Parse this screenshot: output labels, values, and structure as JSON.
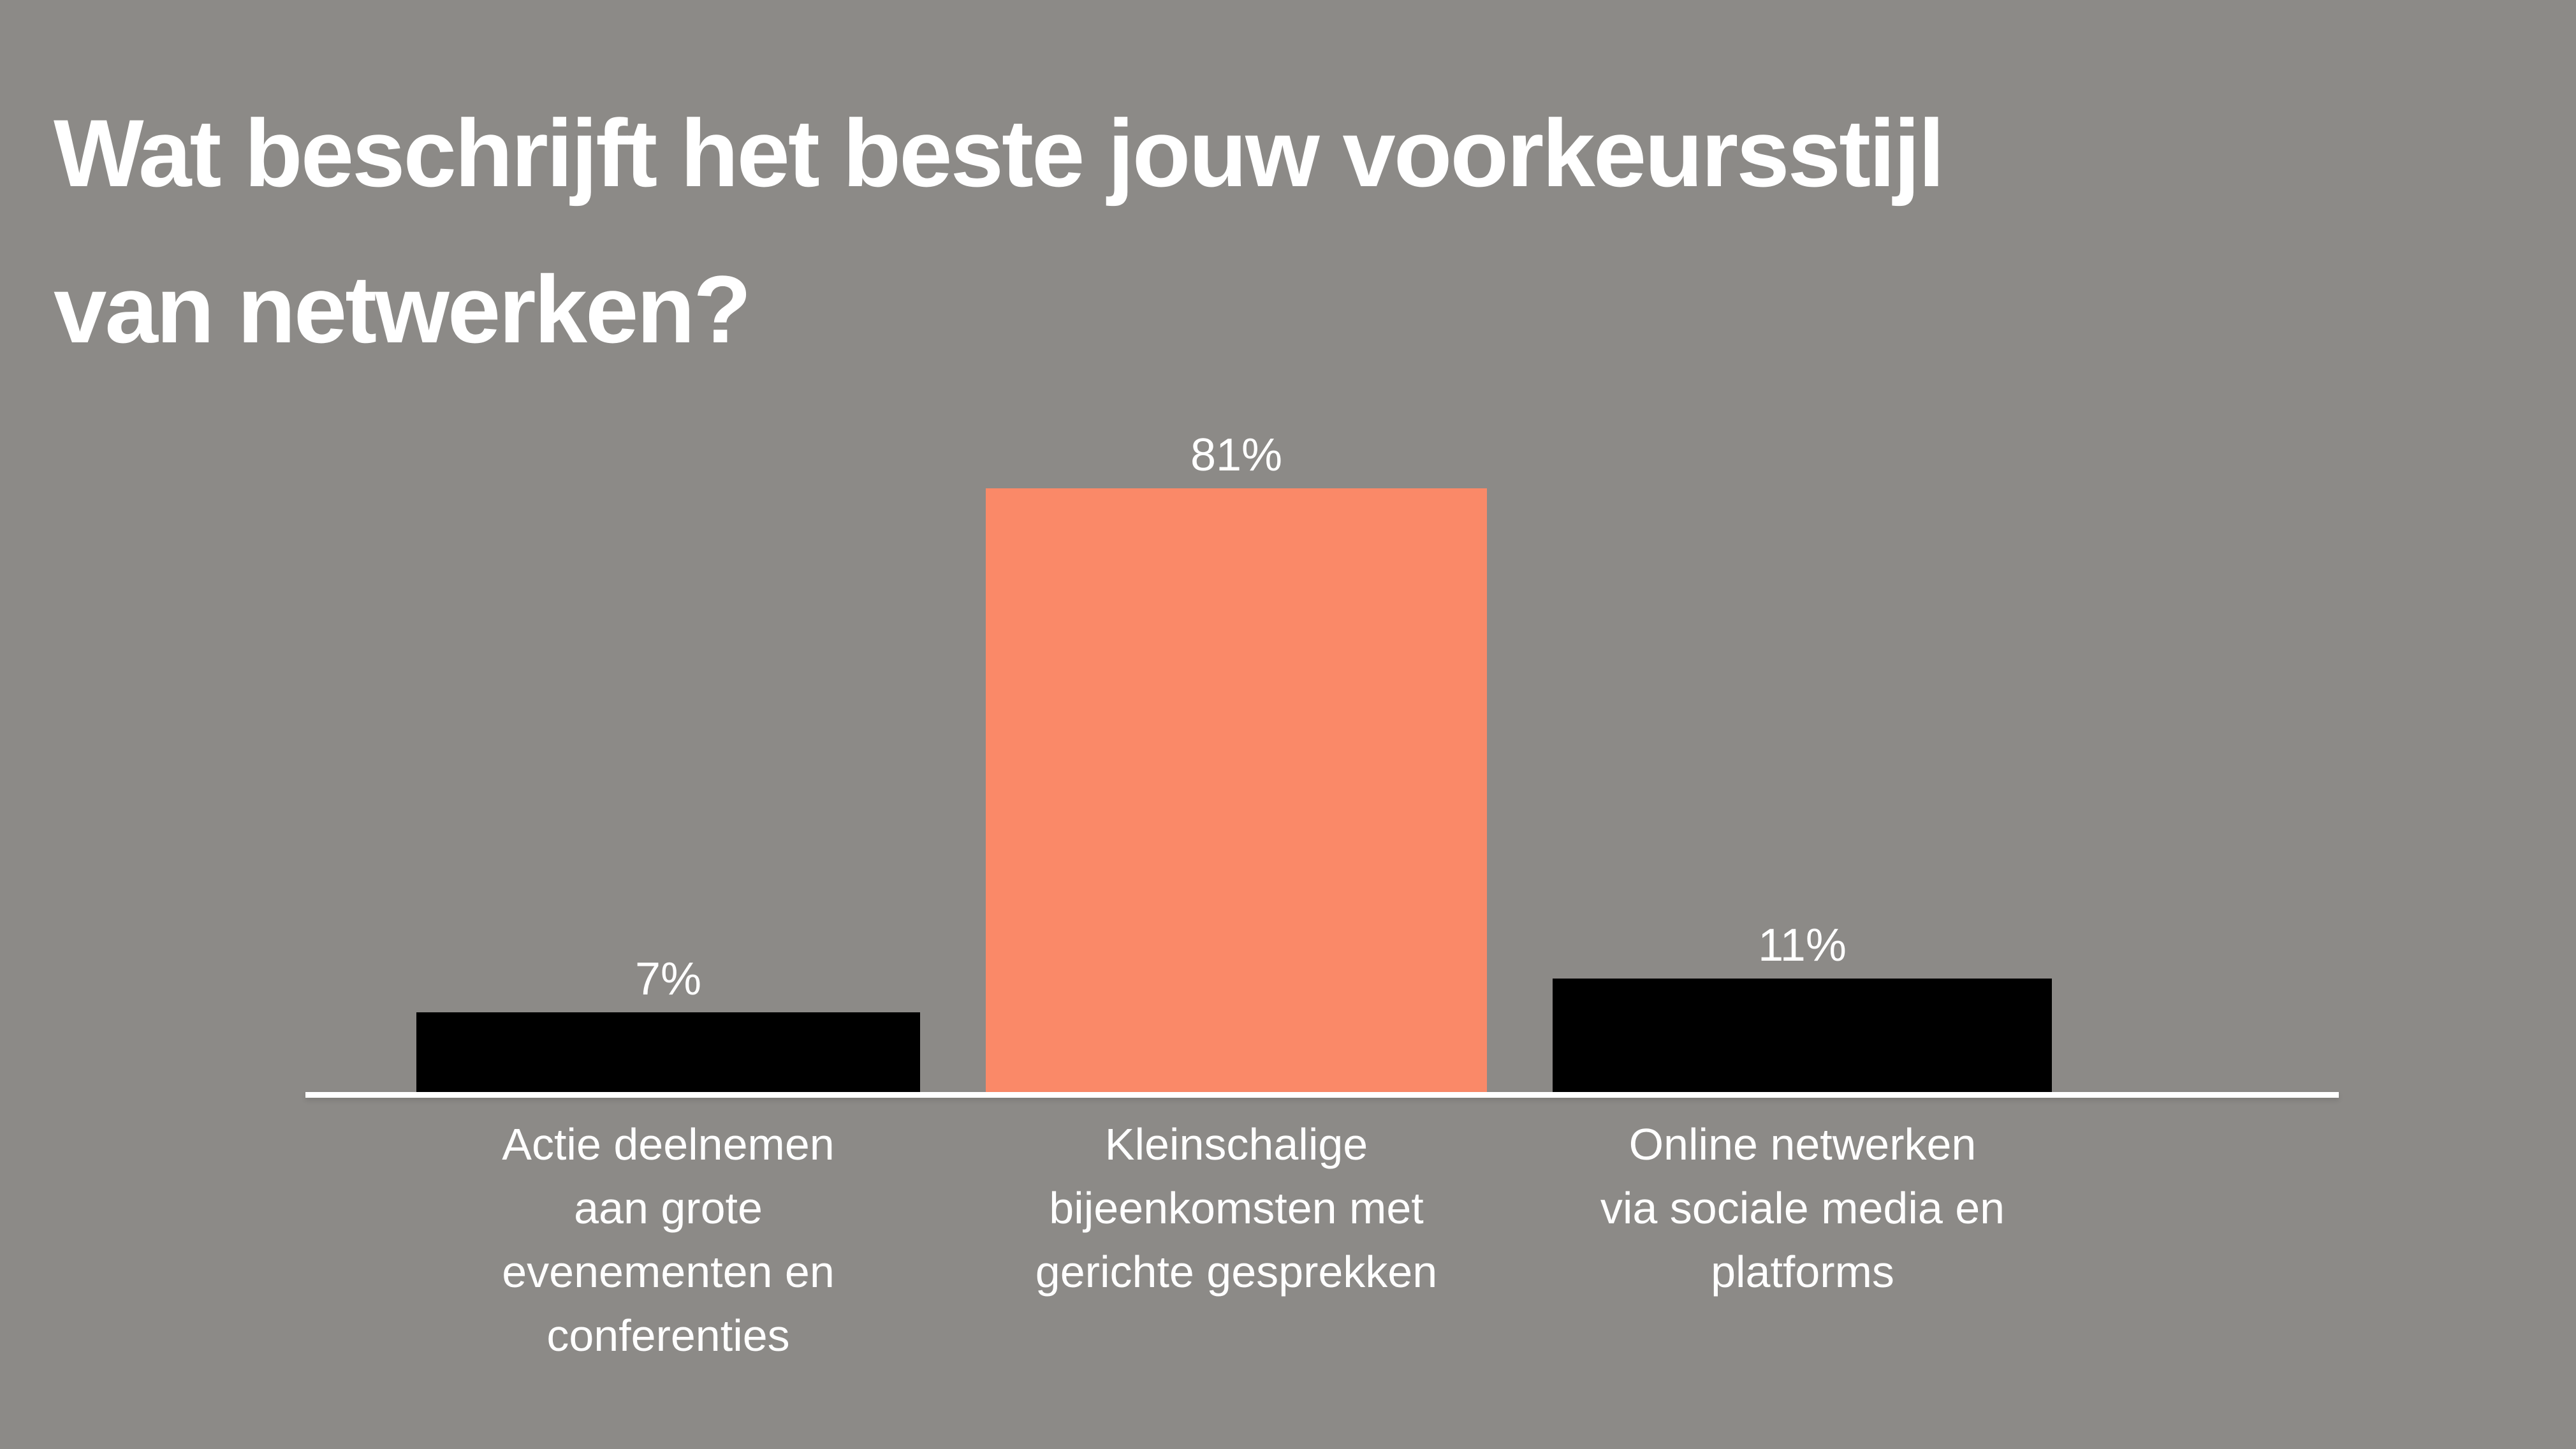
{
  "page": {
    "background": "#8C8A87"
  },
  "title": {
    "text": "Wat beschrijft het beste jouw voorkeursstijl van netwerken?",
    "lines": [
      "Wat beschrijft het beste jouw voorkeursstijl",
      "van netwerken?"
    ],
    "color": "#FFFFFF"
  },
  "chart_data": {
    "type": "bar",
    "title": "Wat beschrijft het beste jouw voorkeursstijl van netwerken?",
    "categories": [
      "Actie deelnemen aan grote evenementen en conferenties",
      "Kleinschalige bijeenkomsten met gerichte gesprekken",
      "Online netwerken via sociale media en platforms"
    ],
    "values": [
      7,
      81,
      11
    ],
    "unit": "%",
    "value_labels": [
      "7%",
      "81%",
      "11%"
    ],
    "bar_colors": [
      "#000000",
      "#FA8968",
      "#000000"
    ],
    "label_color": "#FFFFFF",
    "axis_color": "#FFFFFF",
    "xlabel": "",
    "ylabel": "",
    "ylim": [
      0,
      100
    ],
    "grid": false,
    "legend": false
  },
  "bars": [
    {
      "value_label": "7%",
      "value": 7,
      "color": "#000000",
      "label_lines": [
        "Actie deelnemen",
        "aan grote",
        "evenementen en",
        "conferenties"
      ]
    },
    {
      "value_label": "81%",
      "value": 81,
      "color": "#FA8968",
      "label_lines": [
        "Kleinschalige",
        "bijeenkomsten met",
        "gerichte gesprekken"
      ]
    },
    {
      "value_label": "11%",
      "value": 11,
      "color": "#000000",
      "label_lines": [
        "Online netwerken",
        "via sociale media en",
        "platforms"
      ]
    }
  ]
}
